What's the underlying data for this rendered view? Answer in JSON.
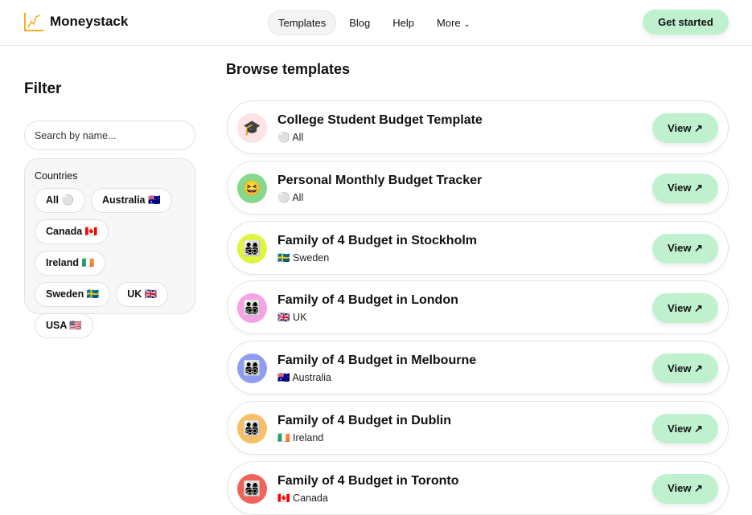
{
  "header": {
    "brand": "Moneystack",
    "nav": [
      "Templates",
      "Blog",
      "Help",
      "More"
    ],
    "active_nav": "Templates",
    "cta": "Get started"
  },
  "sidebar": {
    "title": "Filter",
    "search_placeholder": "Search by name...",
    "countries_label": "Countries",
    "countries": [
      "All ⚪",
      "Australia 🇦🇺",
      "Canada 🇨🇦",
      "Ireland 🇮🇪",
      "Sweden 🇸🇪",
      "UK 🇬🇧",
      "USA 🇺🇸"
    ]
  },
  "main": {
    "title": "Browse templates",
    "view_label": "View ↗",
    "templates": [
      {
        "title": "College Student Budget Template",
        "country": "⚪ All",
        "icon": "🎓",
        "color": "#fde3e3"
      },
      {
        "title": "Personal Monthly Budget Tracker",
        "country": "⚪ All",
        "icon": "😆",
        "color": "#86d98a"
      },
      {
        "title": "Family of 4 Budget in Stockholm",
        "country": "🇸🇪 Sweden",
        "icon": "👨‍👩‍👧‍👦",
        "color": "#dff53f"
      },
      {
        "title": "Family of 4 Budget in London",
        "country": "🇬🇧 UK",
        "icon": "👨‍👩‍👧‍👦",
        "color": "#f5a3e6"
      },
      {
        "title": "Family of 4 Budget in Melbourne",
        "country": "🇦🇺 Australia",
        "icon": "👨‍👩‍👧‍👦",
        "color": "#8f9cf0"
      },
      {
        "title": "Family of 4 Budget in Dublin",
        "country": "🇮🇪 Ireland",
        "icon": "👨‍👩‍👧‍👦",
        "color": "#f8c063"
      },
      {
        "title": "Family of 4 Budget in Toronto",
        "country": "🇨🇦 Canada",
        "icon": "👨‍👩‍👧‍👦",
        "color": "#f0625a"
      }
    ]
  }
}
